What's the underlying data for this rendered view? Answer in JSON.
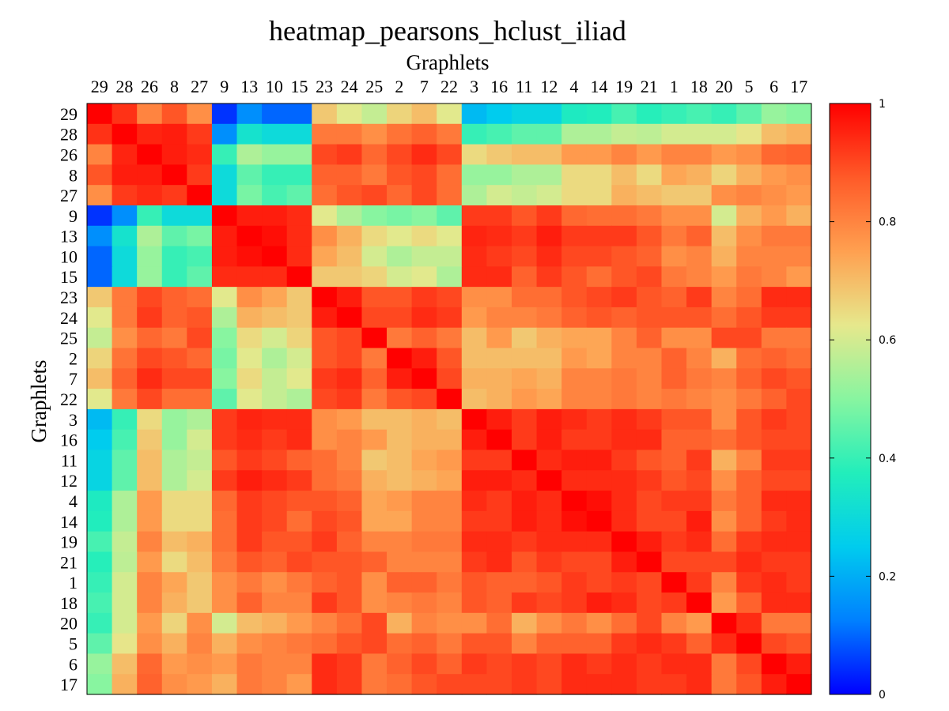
{
  "chart_data": {
    "type": "heatmap",
    "title": "heatmap_pearsons_hclust_iliad",
    "xlabel": "Graphlets",
    "ylabel": "Graphlets",
    "labels": [
      "29",
      "28",
      "26",
      "8",
      "27",
      "9",
      "13",
      "10",
      "15",
      "23",
      "24",
      "25",
      "2",
      "7",
      "22",
      "3",
      "16",
      "11",
      "12",
      "4",
      "14",
      "19",
      "21",
      "1",
      "18",
      "20",
      "5",
      "6",
      "17"
    ],
    "colorbar": {
      "range": [
        0,
        1
      ],
      "ticks": [
        0,
        0.2,
        0.4,
        0.6,
        0.8,
        1
      ],
      "tick_labels": [
        "0",
        "0.2",
        "0.4",
        "0.6",
        "0.8",
        "1"
      ],
      "colormap": "jet"
    },
    "values": [
      [
        1.0,
        0.93,
        0.8,
        0.88,
        0.78,
        0.05,
        0.15,
        0.1,
        0.1,
        0.68,
        0.62,
        0.58,
        0.66,
        0.7,
        0.62,
        0.22,
        0.25,
        0.28,
        0.28,
        0.36,
        0.37,
        0.42,
        0.38,
        0.4,
        0.42,
        0.4,
        0.45,
        0.52,
        0.5
      ],
      [
        0.93,
        1.0,
        0.95,
        0.96,
        0.92,
        0.15,
        0.33,
        0.3,
        0.3,
        0.82,
        0.82,
        0.78,
        0.83,
        0.86,
        0.82,
        0.4,
        0.42,
        0.45,
        0.45,
        0.55,
        0.55,
        0.58,
        0.57,
        0.6,
        0.6,
        0.6,
        0.63,
        0.7,
        0.72
      ],
      [
        0.8,
        0.95,
        1.0,
        0.96,
        0.94,
        0.4,
        0.55,
        0.52,
        0.52,
        0.9,
        0.92,
        0.85,
        0.9,
        0.94,
        0.9,
        0.65,
        0.68,
        0.7,
        0.7,
        0.76,
        0.76,
        0.8,
        0.76,
        0.8,
        0.8,
        0.76,
        0.78,
        0.85,
        0.86
      ],
      [
        0.88,
        0.96,
        0.96,
        1.0,
        0.92,
        0.3,
        0.45,
        0.4,
        0.4,
        0.86,
        0.86,
        0.82,
        0.88,
        0.9,
        0.84,
        0.52,
        0.52,
        0.55,
        0.55,
        0.65,
        0.65,
        0.7,
        0.65,
        0.74,
        0.72,
        0.66,
        0.72,
        0.76,
        0.78
      ],
      [
        0.78,
        0.92,
        0.94,
        0.92,
        1.0,
        0.3,
        0.48,
        0.42,
        0.45,
        0.84,
        0.88,
        0.9,
        0.85,
        0.9,
        0.84,
        0.55,
        0.6,
        0.58,
        0.6,
        0.65,
        0.65,
        0.72,
        0.7,
        0.68,
        0.68,
        0.78,
        0.8,
        0.78,
        0.76
      ],
      [
        0.05,
        0.15,
        0.4,
        0.3,
        0.3,
        1.0,
        0.96,
        0.96,
        0.94,
        0.62,
        0.55,
        0.5,
        0.48,
        0.5,
        0.45,
        0.92,
        0.92,
        0.88,
        0.92,
        0.85,
        0.84,
        0.84,
        0.82,
        0.78,
        0.78,
        0.6,
        0.72,
        0.76,
        0.72
      ],
      [
        0.15,
        0.33,
        0.55,
        0.45,
        0.48,
        0.96,
        1.0,
        0.98,
        0.94,
        0.78,
        0.72,
        0.65,
        0.62,
        0.65,
        0.62,
        0.95,
        0.94,
        0.92,
        0.96,
        0.92,
        0.92,
        0.92,
        0.88,
        0.82,
        0.86,
        0.7,
        0.78,
        0.82,
        0.82
      ],
      [
        0.1,
        0.3,
        0.52,
        0.4,
        0.42,
        0.96,
        0.98,
        1.0,
        0.94,
        0.74,
        0.7,
        0.6,
        0.55,
        0.58,
        0.58,
        0.94,
        0.92,
        0.9,
        0.94,
        0.9,
        0.9,
        0.88,
        0.86,
        0.78,
        0.8,
        0.72,
        0.8,
        0.8,
        0.8
      ],
      [
        0.1,
        0.3,
        0.52,
        0.4,
        0.45,
        0.94,
        0.94,
        0.94,
        1.0,
        0.68,
        0.68,
        0.66,
        0.6,
        0.62,
        0.55,
        0.94,
        0.94,
        0.86,
        0.92,
        0.88,
        0.84,
        0.88,
        0.9,
        0.82,
        0.8,
        0.76,
        0.82,
        0.8,
        0.76
      ],
      [
        0.68,
        0.82,
        0.9,
        0.86,
        0.84,
        0.62,
        0.78,
        0.74,
        0.68,
        1.0,
        0.96,
        0.88,
        0.88,
        0.92,
        0.9,
        0.78,
        0.78,
        0.84,
        0.84,
        0.88,
        0.9,
        0.92,
        0.88,
        0.86,
        0.92,
        0.8,
        0.84,
        0.94,
        0.94
      ],
      [
        0.62,
        0.82,
        0.92,
        0.86,
        0.88,
        0.55,
        0.72,
        0.7,
        0.68,
        0.96,
        1.0,
        0.9,
        0.9,
        0.94,
        0.92,
        0.76,
        0.8,
        0.8,
        0.82,
        0.86,
        0.88,
        0.86,
        0.88,
        0.88,
        0.88,
        0.84,
        0.88,
        0.92,
        0.92
      ],
      [
        0.58,
        0.78,
        0.85,
        0.82,
        0.9,
        0.5,
        0.65,
        0.6,
        0.66,
        0.88,
        0.9,
        1.0,
        0.82,
        0.86,
        0.82,
        0.7,
        0.76,
        0.68,
        0.72,
        0.74,
        0.74,
        0.8,
        0.86,
        0.78,
        0.78,
        0.9,
        0.9,
        0.82,
        0.82
      ],
      [
        0.66,
        0.83,
        0.9,
        0.88,
        0.85,
        0.48,
        0.62,
        0.55,
        0.6,
        0.88,
        0.9,
        0.82,
        1.0,
        0.96,
        0.88,
        0.7,
        0.7,
        0.7,
        0.7,
        0.76,
        0.74,
        0.8,
        0.8,
        0.86,
        0.8,
        0.72,
        0.84,
        0.86,
        0.84
      ],
      [
        0.7,
        0.86,
        0.94,
        0.9,
        0.9,
        0.5,
        0.65,
        0.58,
        0.62,
        0.92,
        0.94,
        0.86,
        0.96,
        1.0,
        0.9,
        0.72,
        0.72,
        0.74,
        0.72,
        0.8,
        0.8,
        0.82,
        0.8,
        0.86,
        0.82,
        0.8,
        0.86,
        0.9,
        0.88
      ],
      [
        0.62,
        0.82,
        0.9,
        0.84,
        0.84,
        0.45,
        0.62,
        0.58,
        0.55,
        0.9,
        0.92,
        0.82,
        0.88,
        0.9,
        1.0,
        0.7,
        0.72,
        0.76,
        0.74,
        0.8,
        0.8,
        0.82,
        0.8,
        0.82,
        0.8,
        0.78,
        0.82,
        0.86,
        0.9
      ],
      [
        0.22,
        0.4,
        0.65,
        0.52,
        0.55,
        0.92,
        0.95,
        0.94,
        0.94,
        0.78,
        0.76,
        0.7,
        0.7,
        0.72,
        0.7,
        1.0,
        0.96,
        0.92,
        0.96,
        0.94,
        0.92,
        0.94,
        0.92,
        0.88,
        0.88,
        0.78,
        0.88,
        0.92,
        0.9
      ],
      [
        0.25,
        0.42,
        0.68,
        0.52,
        0.6,
        0.92,
        0.94,
        0.92,
        0.94,
        0.78,
        0.8,
        0.76,
        0.7,
        0.72,
        0.72,
        0.96,
        1.0,
        0.92,
        0.96,
        0.92,
        0.92,
        0.94,
        0.94,
        0.86,
        0.86,
        0.84,
        0.88,
        0.9,
        0.9
      ],
      [
        0.28,
        0.45,
        0.7,
        0.55,
        0.58,
        0.88,
        0.92,
        0.9,
        0.86,
        0.84,
        0.8,
        0.68,
        0.7,
        0.74,
        0.76,
        0.92,
        0.92,
        1.0,
        0.94,
        0.96,
        0.96,
        0.92,
        0.88,
        0.86,
        0.92,
        0.72,
        0.8,
        0.92,
        0.92
      ],
      [
        0.28,
        0.45,
        0.7,
        0.55,
        0.6,
        0.92,
        0.96,
        0.94,
        0.92,
        0.84,
        0.82,
        0.72,
        0.7,
        0.72,
        0.74,
        0.96,
        0.96,
        0.94,
        1.0,
        0.94,
        0.94,
        0.94,
        0.92,
        0.88,
        0.9,
        0.78,
        0.86,
        0.9,
        0.9
      ],
      [
        0.36,
        0.55,
        0.76,
        0.65,
        0.65,
        0.85,
        0.92,
        0.9,
        0.88,
        0.88,
        0.86,
        0.74,
        0.76,
        0.8,
        0.8,
        0.94,
        0.92,
        0.96,
        0.94,
        1.0,
        0.98,
        0.94,
        0.9,
        0.92,
        0.92,
        0.82,
        0.86,
        0.94,
        0.94
      ],
      [
        0.37,
        0.55,
        0.76,
        0.65,
        0.65,
        0.84,
        0.92,
        0.9,
        0.84,
        0.9,
        0.88,
        0.74,
        0.74,
        0.8,
        0.8,
        0.92,
        0.92,
        0.96,
        0.94,
        0.98,
        1.0,
        0.94,
        0.9,
        0.9,
        0.96,
        0.78,
        0.86,
        0.92,
        0.94
      ],
      [
        0.42,
        0.58,
        0.8,
        0.7,
        0.72,
        0.84,
        0.92,
        0.88,
        0.88,
        0.92,
        0.86,
        0.8,
        0.8,
        0.82,
        0.82,
        0.94,
        0.94,
        0.92,
        0.94,
        0.94,
        0.94,
        1.0,
        0.96,
        0.92,
        0.94,
        0.84,
        0.92,
        0.94,
        0.94
      ],
      [
        0.38,
        0.57,
        0.76,
        0.65,
        0.7,
        0.82,
        0.88,
        0.86,
        0.9,
        0.88,
        0.88,
        0.86,
        0.8,
        0.8,
        0.8,
        0.92,
        0.94,
        0.88,
        0.92,
        0.9,
        0.9,
        0.96,
        1.0,
        0.9,
        0.9,
        0.9,
        0.94,
        0.92,
        0.92
      ],
      [
        0.4,
        0.6,
        0.8,
        0.74,
        0.68,
        0.78,
        0.82,
        0.78,
        0.82,
        0.86,
        0.88,
        0.78,
        0.86,
        0.86,
        0.82,
        0.88,
        0.86,
        0.86,
        0.88,
        0.92,
        0.9,
        0.92,
        0.9,
        1.0,
        0.92,
        0.8,
        0.92,
        0.94,
        0.92
      ],
      [
        0.42,
        0.6,
        0.8,
        0.72,
        0.68,
        0.78,
        0.86,
        0.8,
        0.8,
        0.92,
        0.88,
        0.78,
        0.8,
        0.82,
        0.8,
        0.88,
        0.86,
        0.92,
        0.9,
        0.92,
        0.96,
        0.94,
        0.9,
        0.92,
        1.0,
        0.76,
        0.86,
        0.94,
        0.94
      ],
      [
        0.4,
        0.6,
        0.76,
        0.66,
        0.78,
        0.6,
        0.7,
        0.72,
        0.76,
        0.8,
        0.84,
        0.9,
        0.72,
        0.8,
        0.78,
        0.78,
        0.84,
        0.72,
        0.78,
        0.82,
        0.78,
        0.84,
        0.9,
        0.8,
        0.76,
        1.0,
        0.94,
        0.82,
        0.82
      ],
      [
        0.45,
        0.63,
        0.78,
        0.72,
        0.8,
        0.72,
        0.78,
        0.8,
        0.82,
        0.84,
        0.88,
        0.9,
        0.84,
        0.86,
        0.82,
        0.88,
        0.88,
        0.8,
        0.86,
        0.86,
        0.86,
        0.92,
        0.94,
        0.92,
        0.86,
        0.94,
        1.0,
        0.9,
        0.88
      ],
      [
        0.52,
        0.7,
        0.85,
        0.76,
        0.78,
        0.76,
        0.82,
        0.8,
        0.8,
        0.94,
        0.92,
        0.82,
        0.86,
        0.9,
        0.86,
        0.92,
        0.9,
        0.92,
        0.9,
        0.94,
        0.92,
        0.94,
        0.92,
        0.94,
        0.94,
        0.82,
        0.9,
        1.0,
        0.96
      ],
      [
        0.5,
        0.72,
        0.86,
        0.78,
        0.76,
        0.72,
        0.82,
        0.8,
        0.76,
        0.94,
        0.92,
        0.82,
        0.84,
        0.88,
        0.9,
        0.9,
        0.9,
        0.92,
        0.9,
        0.94,
        0.94,
        0.94,
        0.92,
        0.92,
        0.94,
        0.82,
        0.88,
        0.96,
        1.0
      ]
    ]
  }
}
